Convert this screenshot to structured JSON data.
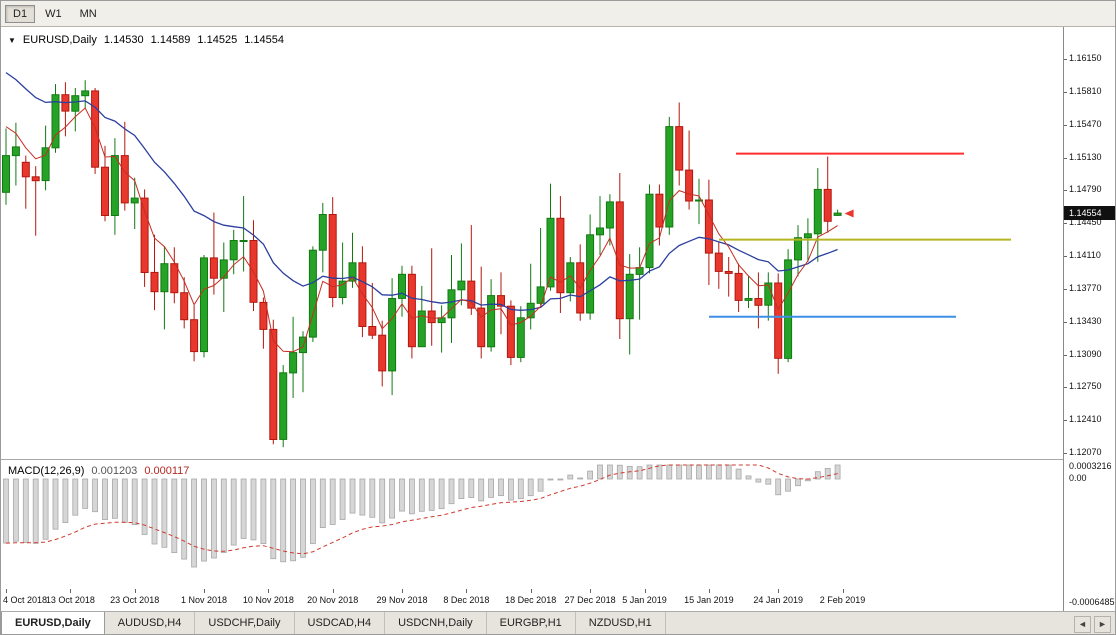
{
  "toolbar": {
    "timeframes": [
      "D1",
      "W1",
      "MN"
    ],
    "active": "D1"
  },
  "icons": {
    "symbol_dropdown": "▼",
    "tab_prev": "◄",
    "tab_next": "►"
  },
  "chart_header": {
    "symbol": "EURUSD,Daily",
    "open": "1.14530",
    "high": "1.14589",
    "low": "1.14525",
    "close": "1.14554"
  },
  "macd_panel": {
    "name": "MACD(12,26,9)",
    "value_main": "0.001203",
    "value_signal": "0.000117"
  },
  "price_axis": {
    "labels": [
      "1.16150",
      "1.15810",
      "1.15470",
      "1.15130",
      "1.14790",
      "1.14450",
      "1.14110",
      "1.13770",
      "1.13430",
      "1.13090",
      "1.12750",
      "1.12410",
      "1.12070"
    ],
    "current_price": "1.14554"
  },
  "tabs": {
    "items": [
      "EURUSD,Daily",
      "AUDUSD,H4",
      "USDCHF,Daily",
      "USDCAD,H4",
      "USDCNH,Daily",
      "EURGBP,H1",
      "NZDUSD,H1"
    ],
    "active_index": 0
  },
  "chart_data": {
    "type": "candlestick",
    "symbol": "EURUSD",
    "timeframe": "Daily",
    "ohlc_format": [
      "open",
      "high",
      "low",
      "close"
    ],
    "y_axis": {
      "min": 1.1207,
      "max": 1.1615,
      "tick_step": 0.0034
    },
    "bull_color": "#26a326",
    "bull_border": "#117a11",
    "bear_color": "#e8382e",
    "bear_border": "#b3170e",
    "dates": [
      "2018-10-04",
      "2018-10-05",
      "2018-10-08",
      "2018-10-09",
      "2018-10-10",
      "2018-10-11",
      "2018-10-12",
      "2018-10-15",
      "2018-10-16",
      "2018-10-17",
      "2018-10-18",
      "2018-10-19",
      "2018-10-22",
      "2018-10-23",
      "2018-10-24",
      "2018-10-25",
      "2018-10-26",
      "2018-10-29",
      "2018-10-30",
      "2018-10-31",
      "2018-11-01",
      "2018-11-02",
      "2018-11-05",
      "2018-11-06",
      "2018-11-07",
      "2018-11-08",
      "2018-11-09",
      "2018-11-12",
      "2018-11-13",
      "2018-11-14",
      "2018-11-15",
      "2018-11-16",
      "2018-11-19",
      "2018-11-20",
      "2018-11-21",
      "2018-11-22",
      "2018-11-23",
      "2018-11-26",
      "2018-11-27",
      "2018-11-28",
      "2018-11-29",
      "2018-11-30",
      "2018-12-03",
      "2018-12-04",
      "2018-12-05",
      "2018-12-06",
      "2018-12-07",
      "2018-12-10",
      "2018-12-11",
      "2018-12-12",
      "2018-12-13",
      "2018-12-14",
      "2018-12-17",
      "2018-12-18",
      "2018-12-19",
      "2018-12-20",
      "2018-12-21",
      "2018-12-24",
      "2018-12-26",
      "2018-12-27",
      "2018-12-28",
      "2018-12-31",
      "2019-01-02",
      "2019-01-03",
      "2019-01-04",
      "2019-01-07",
      "2019-01-08",
      "2019-01-09",
      "2019-01-10",
      "2019-01-11",
      "2019-01-14",
      "2019-01-15",
      "2019-01-16",
      "2019-01-17",
      "2019-01-18",
      "2019-01-21",
      "2019-01-22",
      "2019-01-23",
      "2019-01-24",
      "2019-01-25",
      "2019-01-28",
      "2019-01-29",
      "2019-01-30",
      "2019-01-31",
      "2019-02-01"
    ],
    "ohlc": [
      [
        1.1477,
        1.1543,
        1.1464,
        1.1515
      ],
      [
        1.1515,
        1.1549,
        1.1484,
        1.1524
      ],
      [
        1.1508,
        1.1515,
        1.146,
        1.1493
      ],
      [
        1.1493,
        1.1504,
        1.1432,
        1.1489
      ],
      [
        1.1489,
        1.1546,
        1.1479,
        1.1523
      ],
      [
        1.1523,
        1.1589,
        1.1518,
        1.1578
      ],
      [
        1.1578,
        1.1591,
        1.1535,
        1.1561
      ],
      [
        1.1561,
        1.1585,
        1.154,
        1.1577
      ],
      [
        1.1577,
        1.1593,
        1.1564,
        1.1582
      ],
      [
        1.1582,
        1.1585,
        1.1496,
        1.1503
      ],
      [
        1.1503,
        1.1525,
        1.1447,
        1.1453
      ],
      [
        1.1453,
        1.1533,
        1.1433,
        1.1515
      ],
      [
        1.1515,
        1.155,
        1.1458,
        1.1466
      ],
      [
        1.1466,
        1.1492,
        1.1439,
        1.1471
      ],
      [
        1.1471,
        1.148,
        1.1379,
        1.1394
      ],
      [
        1.1394,
        1.1433,
        1.1355,
        1.1374
      ],
      [
        1.1374,
        1.1421,
        1.1335,
        1.1403
      ],
      [
        1.1403,
        1.142,
        1.1362,
        1.1373
      ],
      [
        1.1373,
        1.1389,
        1.1336,
        1.1345
      ],
      [
        1.1345,
        1.136,
        1.1302,
        1.1312
      ],
      [
        1.1312,
        1.1412,
        1.1306,
        1.1409
      ],
      [
        1.1409,
        1.1456,
        1.1371,
        1.1388
      ],
      [
        1.1388,
        1.1425,
        1.1353,
        1.1407
      ],
      [
        1.1407,
        1.1438,
        1.1392,
        1.1427
      ],
      [
        1.1427,
        1.1473,
        1.1395,
        1.1427
      ],
      [
        1.1427,
        1.1448,
        1.1354,
        1.1363
      ],
      [
        1.1363,
        1.1368,
        1.1315,
        1.1335
      ],
      [
        1.1335,
        1.1345,
        1.1216,
        1.1221
      ],
      [
        1.1221,
        1.1298,
        1.1213,
        1.129
      ],
      [
        1.129,
        1.1348,
        1.1264,
        1.1311
      ],
      [
        1.1311,
        1.1333,
        1.127,
        1.1327
      ],
      [
        1.1327,
        1.1421,
        1.1322,
        1.1417
      ],
      [
        1.1417,
        1.1466,
        1.1394,
        1.1454
      ],
      [
        1.1454,
        1.1472,
        1.1358,
        1.1368
      ],
      [
        1.1368,
        1.1425,
        1.1361,
        1.1385
      ],
      [
        1.1385,
        1.1435,
        1.1378,
        1.1404
      ],
      [
        1.1404,
        1.1421,
        1.1327,
        1.1338
      ],
      [
        1.1338,
        1.1383,
        1.1325,
        1.1329
      ],
      [
        1.1329,
        1.1344,
        1.1276,
        1.1292
      ],
      [
        1.1292,
        1.1388,
        1.1267,
        1.1367
      ],
      [
        1.1367,
        1.1401,
        1.1348,
        1.1392
      ],
      [
        1.1392,
        1.1401,
        1.1305,
        1.1317
      ],
      [
        1.1317,
        1.138,
        1.1317,
        1.1354
      ],
      [
        1.1354,
        1.1419,
        1.1318,
        1.1342
      ],
      [
        1.1342,
        1.136,
        1.1311,
        1.1347
      ],
      [
        1.1347,
        1.1412,
        1.1321,
        1.1376
      ],
      [
        1.1376,
        1.1424,
        1.136,
        1.1385
      ],
      [
        1.1385,
        1.1443,
        1.135,
        1.1357
      ],
      [
        1.1357,
        1.14,
        1.1305,
        1.1317
      ],
      [
        1.1317,
        1.1387,
        1.1312,
        1.137
      ],
      [
        1.137,
        1.1394,
        1.133,
        1.1359
      ],
      [
        1.1359,
        1.1365,
        1.1298,
        1.1306
      ],
      [
        1.1306,
        1.1359,
        1.1301,
        1.1347
      ],
      [
        1.1347,
        1.1403,
        1.1335,
        1.1362
      ],
      [
        1.1362,
        1.144,
        1.136,
        1.1379
      ],
      [
        1.1379,
        1.1486,
        1.1375,
        1.145
      ],
      [
        1.145,
        1.1473,
        1.1352,
        1.1373
      ],
      [
        1.1373,
        1.141,
        1.1364,
        1.1404
      ],
      [
        1.1404,
        1.1423,
        1.1344,
        1.1352
      ],
      [
        1.1352,
        1.1454,
        1.1345,
        1.1433
      ],
      [
        1.1433,
        1.1473,
        1.1412,
        1.144
      ],
      [
        1.144,
        1.1475,
        1.1422,
        1.1467
      ],
      [
        1.1467,
        1.1497,
        1.1325,
        1.1346
      ],
      [
        1.1346,
        1.1413,
        1.1309,
        1.1392
      ],
      [
        1.1392,
        1.142,
        1.1345,
        1.1399
      ],
      [
        1.1399,
        1.1485,
        1.1393,
        1.1475
      ],
      [
        1.1475,
        1.1485,
        1.1422,
        1.1441
      ],
      [
        1.1441,
        1.1555,
        1.1433,
        1.1545
      ],
      [
        1.1545,
        1.157,
        1.1484,
        1.15
      ],
      [
        1.15,
        1.1541,
        1.1459,
        1.1468
      ],
      [
        1.1468,
        1.1491,
        1.1444,
        1.1469
      ],
      [
        1.1469,
        1.149,
        1.1381,
        1.1414
      ],
      [
        1.1414,
        1.1426,
        1.1377,
        1.1395
      ],
      [
        1.1395,
        1.141,
        1.1369,
        1.1393
      ],
      [
        1.1393,
        1.1403,
        1.1353,
        1.1365
      ],
      [
        1.1365,
        1.139,
        1.1357,
        1.1367
      ],
      [
        1.1367,
        1.1394,
        1.1336,
        1.136
      ],
      [
        1.136,
        1.1394,
        1.1344,
        1.1383
      ],
      [
        1.1383,
        1.1393,
        1.1289,
        1.1305
      ],
      [
        1.1305,
        1.1418,
        1.1301,
        1.1407
      ],
      [
        1.1407,
        1.1443,
        1.139,
        1.143
      ],
      [
        1.143,
        1.145,
        1.1405,
        1.1434
      ],
      [
        1.1434,
        1.1502,
        1.1405,
        1.148
      ],
      [
        1.148,
        1.1514,
        1.1435,
        1.1447
      ],
      [
        1.1453,
        1.14589,
        1.14525,
        1.14554
      ]
    ],
    "x_ticks": [
      {
        "label": "4 Oct 2018",
        "i": 0
      },
      {
        "label": "13 Oct 2018",
        "i": 6.5
      },
      {
        "label": "23 Oct 2018",
        "i": 13
      },
      {
        "label": "1 Nov 2018",
        "i": 20
      },
      {
        "label": "10 Nov 2018",
        "i": 26.5
      },
      {
        "label": "20 Nov 2018",
        "i": 33
      },
      {
        "label": "29 Nov 2018",
        "i": 40
      },
      {
        "label": "8 Dec 2018",
        "i": 46.5
      },
      {
        "label": "18 Dec 2018",
        "i": 53
      },
      {
        "label": "27 Dec 2018",
        "i": 59
      },
      {
        "label": "5 Jan 2019",
        "i": 64.5
      },
      {
        "label": "15 Jan 2019",
        "i": 71
      },
      {
        "label": "24 Jan 2019",
        "i": 78
      },
      {
        "label": "2 Feb 2019",
        "i": 84.5
      }
    ],
    "moving_averages": [
      {
        "type": "ema",
        "period": 5,
        "color": "#c62d22"
      },
      {
        "type": "ema",
        "period": 20,
        "color": "#2b3f9e"
      }
    ],
    "hlines": [
      {
        "name": "resistance-hline-red",
        "price": 1.1517,
        "color": "#ff2e2e",
        "width": 2,
        "x1": 735,
        "x2": 963
      },
      {
        "name": "level-hline-yellow",
        "price": 1.1428,
        "color": "#b5b520",
        "width": 2,
        "x1": 718,
        "x2": 1010
      },
      {
        "name": "support-hline-blue",
        "price": 1.1348,
        "color": "#3d8fe5",
        "width": 2,
        "x1": 708,
        "x2": 955
      }
    ],
    "price_marker": {
      "price": 1.1455,
      "color": "#e8382e",
      "shape": "left-arrow"
    },
    "macd": {
      "fast": 12,
      "slow": 26,
      "signal": 9,
      "histogram_color": "#d6d6d6",
      "histogram_border": "#a8a8a8",
      "signal_color": "#cf3a2e",
      "axis_labels": [
        "0.0003216",
        "0.00",
        "-0.0006485"
      ],
      "last_values": [
        0.001203,
        0.000117
      ]
    }
  }
}
